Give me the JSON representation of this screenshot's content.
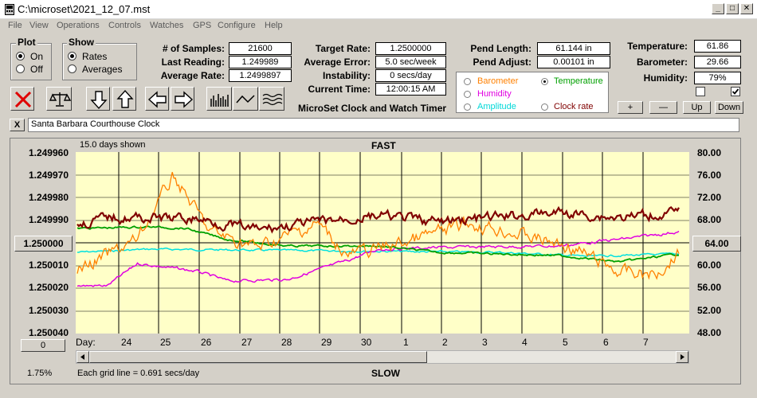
{
  "window": {
    "title": "C:\\microset\\2021_12_07.mst"
  },
  "menu": [
    "File",
    "View",
    "Operations",
    "Controls",
    "Watches",
    "GPS",
    "Configure",
    "Help"
  ],
  "plot_group": {
    "title": "Plot",
    "on_label": "On",
    "off_label": "Off",
    "selected": "On"
  },
  "show_group": {
    "title": "Show",
    "rates_label": "Rates",
    "averages_label": "Averages",
    "selected": "Rates"
  },
  "stats": {
    "samples_label": "# of Samples:",
    "samples_value": "21600",
    "last_reading_label": "Last Reading:",
    "last_reading_value": "1.249989",
    "average_rate_label": "Average Rate:",
    "average_rate_value": "1.2499897",
    "target_rate_label": "Target Rate:",
    "target_rate_value": "1.2500000",
    "average_error_label": "Average Error:",
    "average_error_value": "5.0 sec/week",
    "instability_label": "Instability:",
    "instability_value": "0 secs/day",
    "current_time_label": "Current Time:",
    "current_time_value": "12:00:15 AM",
    "pend_length_label": "Pend Length:",
    "pend_length_value": "61.144 in",
    "pend_adjust_label": "Pend Adjust:",
    "pend_adjust_value": "0.00101 in",
    "temperature_label": "Temperature:",
    "temperature_value": "61.86",
    "barometer_label": "Barometer:",
    "barometer_value": "29.66",
    "humidity_label": "Humidity:",
    "humidity_value": "79%"
  },
  "app_caption": "MicroSet Clock and Watch Timer",
  "sensors": {
    "barometer": "Barometer",
    "temperature": "Temperature",
    "humidity": "Humidity",
    "amplitude": "Amplitude",
    "clock_rate": "Clock rate",
    "selected": "Temperature"
  },
  "adjust_buttons": {
    "plus": "+",
    "minus": "—",
    "up": "Up",
    "down": "Down"
  },
  "clock_name": "Santa Barbara Courthouse Clock",
  "close_x": "X",
  "plot": {
    "days_shown": "15.0 days shown",
    "fast_label": "FAST",
    "slow_label": "SLOW",
    "grid_note": "Each grid line = 0.691 secs/day",
    "percent": "1.75%",
    "left_zero_button": "0",
    "day_prefix": "Day:",
    "center_left": "1.250000",
    "center_right": "64.00",
    "left_axis": [
      "1.249960",
      "1.249970",
      "1.249980",
      "1.249990",
      "1.250010",
      "1.250020",
      "1.250030",
      "1.250040"
    ],
    "right_axis": [
      "80.00",
      "76.00",
      "72.00",
      "68.00",
      "60.00",
      "56.00",
      "52.00",
      "48.00"
    ],
    "days": [
      "24",
      "25",
      "26",
      "27",
      "28",
      "29",
      "30",
      "1",
      "2",
      "3",
      "4",
      "5",
      "6",
      "7"
    ]
  },
  "colors": {
    "rate": "#800000",
    "barometer": "#ff8000",
    "temperature": "#00a000",
    "humidity": "#e000e0",
    "amplitude": "#00e0e0",
    "plot_bg": "#ffffc8"
  }
}
